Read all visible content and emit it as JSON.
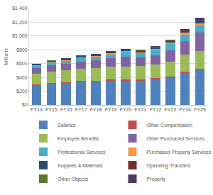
{
  "chart_data": {
    "type": "bar",
    "stacked": true,
    "grid": true,
    "legend": "bottom",
    "y_label": "Millions",
    "categories": [
      "FY14",
      "FY15",
      "FY16",
      "FY17",
      "FY18",
      "FY19",
      "FY20",
      "FY21",
      "FY22",
      "FY23",
      "FY24",
      "FY25"
    ],
    "ylim": [
      0,
      1400
    ],
    "yticks": [
      {
        "value": 0,
        "label": "$0"
      },
      {
        "value": 200,
        "label": "$200"
      },
      {
        "value": 400,
        "label": "$400"
      },
      {
        "value": 600,
        "label": "$600"
      },
      {
        "value": 800,
        "label": "$800"
      },
      {
        "value": 1000,
        "label": "$1,000"
      },
      {
        "value": 1200,
        "label": "$1,200"
      },
      {
        "value": 1400,
        "label": "$1,400"
      }
    ],
    "series": [
      {
        "name": "Salaries",
        "color": "#4f81bd",
        "values": [
          290,
          310,
          320,
          340,
          340,
          350,
          350,
          355,
          370,
          395,
          460,
          500
        ]
      },
      {
        "name": "Other Compensation",
        "color": "#c0504d",
        "values": [
          12,
          13,
          13,
          14,
          15,
          16,
          17,
          17,
          18,
          20,
          22,
          25
        ]
      },
      {
        "name": "Employee Benefits",
        "color": "#9bbb59",
        "values": [
          150,
          165,
          170,
          175,
          180,
          190,
          190,
          195,
          195,
          210,
          250,
          260
        ]
      },
      {
        "name": "Other Purchased Services",
        "color": "#8064a2",
        "values": [
          80,
          90,
          95,
          100,
          110,
          120,
          145,
          125,
          135,
          170,
          190,
          260
        ]
      },
      {
        "name": "Professional Services",
        "color": "#4bacc6",
        "values": [
          30,
          40,
          45,
          50,
          55,
          60,
          65,
          60,
          80,
          90,
          100,
          110
        ]
      },
      {
        "name": "Purchased Property Services",
        "color": "#f79646",
        "values": [
          10,
          10,
          10,
          12,
          12,
          12,
          14,
          14,
          18,
          20,
          25,
          30
        ]
      },
      {
        "name": "Supplies & Materials",
        "color": "#2c4d75",
        "values": [
          12,
          13,
          14,
          16,
          17,
          18,
          18,
          17,
          20,
          22,
          28,
          35
        ]
      },
      {
        "name": "Operating Transfers",
        "color": "#772c2a",
        "values": [
          2,
          2,
          2,
          2,
          2,
          2,
          2,
          2,
          3,
          3,
          3,
          3
        ]
      },
      {
        "name": "Other Objects",
        "color": "#5f7530",
        "values": [
          3,
          3,
          4,
          4,
          4,
          5,
          5,
          5,
          5,
          5,
          5,
          5
        ]
      },
      {
        "name": "Property",
        "color": "#4d3b62",
        "values": [
          5,
          6,
          7,
          8,
          8,
          9,
          10,
          10,
          12,
          15,
          22,
          35
        ]
      }
    ]
  }
}
